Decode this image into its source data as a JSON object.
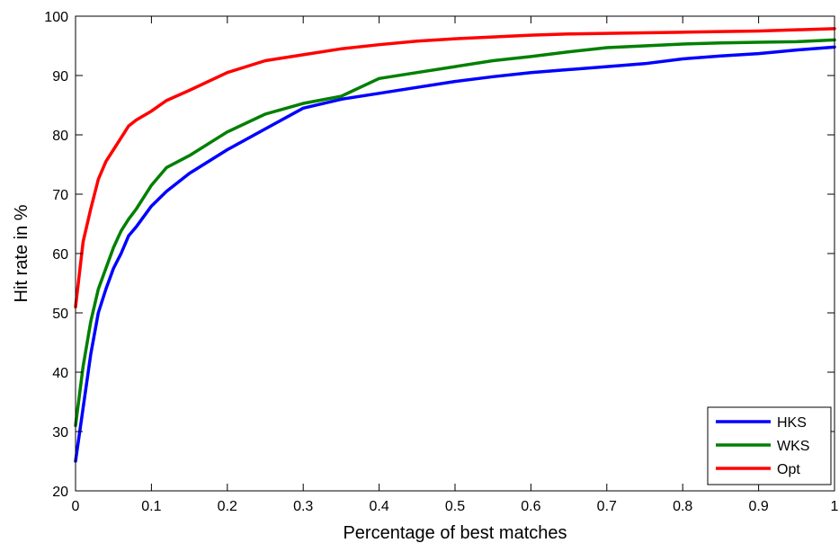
{
  "chart_data": {
    "type": "line",
    "title": "",
    "xlabel": "Percentage of best matches",
    "ylabel": "Hit rate in %",
    "xlim": [
      0,
      1
    ],
    "ylim": [
      20,
      100
    ],
    "xticks": [
      0,
      0.1,
      0.2,
      0.3,
      0.4,
      0.5,
      0.6,
      0.7,
      0.8,
      0.9,
      1
    ],
    "xtick_labels": [
      "0",
      "0.1",
      "0.2",
      "0.3",
      "0.4",
      "0.5",
      "0.6",
      "0.7",
      "0.8",
      "0.9",
      "1"
    ],
    "yticks": [
      20,
      30,
      40,
      50,
      60,
      70,
      80,
      90,
      100
    ],
    "ytick_labels": [
      "20",
      "30",
      "40",
      "50",
      "60",
      "70",
      "80",
      "90",
      "100"
    ],
    "grid": false,
    "legend_position": "bottom-right",
    "x": [
      0,
      0.01,
      0.02,
      0.03,
      0.04,
      0.05,
      0.06,
      0.07,
      0.08,
      0.1,
      0.12,
      0.15,
      0.2,
      0.25,
      0.3,
      0.35,
      0.4,
      0.45,
      0.5,
      0.55,
      0.6,
      0.65,
      0.7,
      0.75,
      0.8,
      0.85,
      0.9,
      0.95,
      1.0
    ],
    "series": [
      {
        "name": "HKS",
        "color": "#0000ff",
        "values": [
          25,
          34,
          43,
          50,
          54,
          57.5,
          60,
          63,
          64.5,
          68,
          70.5,
          73.5,
          77.5,
          81,
          84.5,
          86,
          87,
          88,
          89,
          89.8,
          90.5,
          91,
          91.5,
          92,
          92.8,
          93.3,
          93.7,
          94.3,
          94.8
        ]
      },
      {
        "name": "WKS",
        "color": "#008000",
        "values": [
          31,
          41,
          48.5,
          54,
          57.5,
          61,
          63.8,
          65.8,
          67.5,
          71.5,
          74.5,
          76.5,
          80.5,
          83.5,
          85.3,
          86.5,
          89.5,
          90.5,
          91.5,
          92.5,
          93.2,
          94,
          94.7,
          95,
          95.3,
          95.5,
          95.6,
          95.7,
          96
        ]
      },
      {
        "name": "Opt",
        "color": "#ff0000",
        "values": [
          51,
          62,
          67.5,
          72.5,
          75.5,
          77.5,
          79.5,
          81.5,
          82.5,
          84,
          85.8,
          87.5,
          90.5,
          92.5,
          93.5,
          94.5,
          95.2,
          95.8,
          96.2,
          96.5,
          96.8,
          97,
          97.1,
          97.2,
          97.3,
          97.4,
          97.5,
          97.7,
          97.9
        ]
      }
    ]
  }
}
